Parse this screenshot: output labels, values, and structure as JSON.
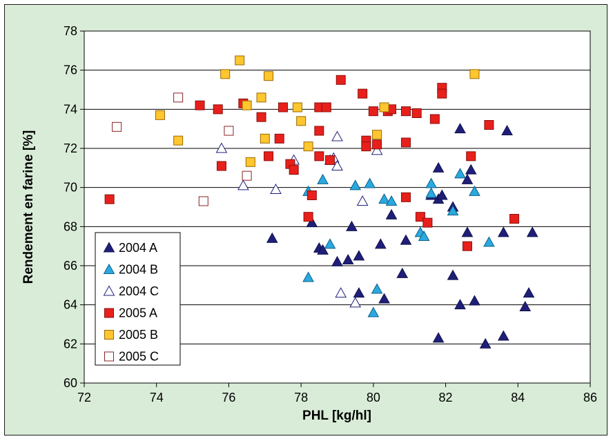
{
  "chart_data": {
    "type": "scatter",
    "xlabel": "PHL [kg/hl]",
    "ylabel": "Rendement en farine [%]",
    "xlim": [
      72,
      86
    ],
    "ylim": [
      60,
      78
    ],
    "xticks": [
      "72",
      "74",
      "76",
      "78",
      "80",
      "82",
      "84",
      "86"
    ],
    "yticks": [
      "60",
      "62",
      "64",
      "66",
      "68",
      "70",
      "72",
      "74",
      "76",
      "78"
    ],
    "grid": "horizontal",
    "legend_position": "bottom-left",
    "series": [
      {
        "name": "2004 A",
        "marker": "triangle",
        "fill": "#1f1f7a",
        "stroke": "#10104a",
        "points": [
          [
            77.2,
            67.4
          ],
          [
            78.3,
            68.2
          ],
          [
            78.5,
            66.9
          ],
          [
            78.6,
            66.8
          ],
          [
            79.0,
            66.2
          ],
          [
            79.3,
            66.3
          ],
          [
            79.4,
            68.0
          ],
          [
            79.6,
            66.5
          ],
          [
            79.6,
            64.6
          ],
          [
            80.2,
            67.1
          ],
          [
            80.3,
            64.3
          ],
          [
            80.5,
            68.6
          ],
          [
            80.8,
            65.6
          ],
          [
            80.9,
            67.3
          ],
          [
            81.6,
            69.6
          ],
          [
            81.8,
            69.4
          ],
          [
            81.8,
            71.0
          ],
          [
            81.8,
            62.3
          ],
          [
            81.9,
            69.6
          ],
          [
            82.2,
            65.5
          ],
          [
            82.2,
            69.0
          ],
          [
            82.4,
            73.0
          ],
          [
            82.4,
            64.0
          ],
          [
            82.6,
            70.4
          ],
          [
            82.6,
            67.7
          ],
          [
            82.7,
            70.9
          ],
          [
            82.8,
            64.2
          ],
          [
            83.1,
            62.0
          ],
          [
            83.6,
            67.7
          ],
          [
            83.6,
            62.4
          ],
          [
            83.7,
            72.9
          ],
          [
            84.2,
            63.9
          ],
          [
            84.3,
            64.6
          ],
          [
            84.4,
            67.7
          ]
        ]
      },
      {
        "name": "2004 B",
        "marker": "triangle",
        "fill": "#2aa9e0",
        "stroke": "#0c5f86",
        "points": [
          [
            78.2,
            69.8
          ],
          [
            78.2,
            65.4
          ],
          [
            78.6,
            70.4
          ],
          [
            78.8,
            67.1
          ],
          [
            78.8,
            71.4
          ],
          [
            79.5,
            70.1
          ],
          [
            79.9,
            70.2
          ],
          [
            80.0,
            63.6
          ],
          [
            80.1,
            64.8
          ],
          [
            80.3,
            69.4
          ],
          [
            80.5,
            69.3
          ],
          [
            81.3,
            67.7
          ],
          [
            81.4,
            67.5
          ],
          [
            81.6,
            70.2
          ],
          [
            81.6,
            69.7
          ],
          [
            82.2,
            68.8
          ],
          [
            82.4,
            70.7
          ],
          [
            82.8,
            69.8
          ],
          [
            83.2,
            67.2
          ]
        ]
      },
      {
        "name": "2004 C",
        "marker": "triangle",
        "fill": "#ffffff",
        "stroke": "#1f1f7a",
        "points": [
          [
            75.8,
            72.0
          ],
          [
            76.4,
            70.1
          ],
          [
            77.3,
            69.9
          ],
          [
            77.8,
            71.4
          ],
          [
            78.9,
            71.5
          ],
          [
            79.0,
            71.1
          ],
          [
            79.0,
            72.6
          ],
          [
            79.1,
            64.6
          ],
          [
            79.5,
            64.1
          ],
          [
            79.7,
            69.3
          ],
          [
            80.1,
            71.9
          ]
        ]
      },
      {
        "name": "2005 A",
        "marker": "square",
        "fill": "#e8201c",
        "stroke": "#8a0f0c",
        "points": [
          [
            72.7,
            69.4
          ],
          [
            75.2,
            74.2
          ],
          [
            75.7,
            74.0
          ],
          [
            75.8,
            71.1
          ],
          [
            76.4,
            74.3
          ],
          [
            76.9,
            73.6
          ],
          [
            77.1,
            71.6
          ],
          [
            77.4,
            72.5
          ],
          [
            77.5,
            74.1
          ],
          [
            77.7,
            71.2
          ],
          [
            77.8,
            70.9
          ],
          [
            78.2,
            68.5
          ],
          [
            78.3,
            69.6
          ],
          [
            78.5,
            74.1
          ],
          [
            78.5,
            72.9
          ],
          [
            78.5,
            71.6
          ],
          [
            78.7,
            74.1
          ],
          [
            78.8,
            71.4
          ],
          [
            79.1,
            75.5
          ],
          [
            79.7,
            74.8
          ],
          [
            79.8,
            72.4
          ],
          [
            79.8,
            72.1
          ],
          [
            80.0,
            73.9
          ],
          [
            80.1,
            72.2
          ],
          [
            80.4,
            73.9
          ],
          [
            80.5,
            74.0
          ],
          [
            80.9,
            73.9
          ],
          [
            80.9,
            72.3
          ],
          [
            80.9,
            69.5
          ],
          [
            81.2,
            73.8
          ],
          [
            81.3,
            68.5
          ],
          [
            81.5,
            68.2
          ],
          [
            81.7,
            73.5
          ],
          [
            81.9,
            75.1
          ],
          [
            81.9,
            74.8
          ],
          [
            82.6,
            67.0
          ],
          [
            82.7,
            71.6
          ],
          [
            83.2,
            73.2
          ],
          [
            83.9,
            68.4
          ]
        ]
      },
      {
        "name": "2005 B",
        "marker": "square",
        "fill": "#ffc62f",
        "stroke": "#9a6a00",
        "points": [
          [
            74.1,
            73.7
          ],
          [
            74.6,
            72.4
          ],
          [
            75.9,
            75.8
          ],
          [
            76.3,
            76.5
          ],
          [
            76.5,
            74.2
          ],
          [
            76.6,
            71.3
          ],
          [
            76.9,
            74.6
          ],
          [
            77.0,
            72.5
          ],
          [
            77.1,
            75.7
          ],
          [
            77.9,
            74.1
          ],
          [
            78.0,
            73.4
          ],
          [
            78.2,
            72.1
          ],
          [
            80.1,
            72.7
          ],
          [
            80.3,
            74.1
          ],
          [
            82.8,
            75.8
          ]
        ]
      },
      {
        "name": "2005 C",
        "marker": "square",
        "fill": "#ffffff",
        "stroke": "#8a2020",
        "points": [
          [
            72.9,
            73.1
          ],
          [
            74.6,
            74.6
          ],
          [
            75.3,
            69.3
          ],
          [
            76.0,
            72.9
          ],
          [
            76.5,
            70.6
          ]
        ]
      }
    ]
  }
}
